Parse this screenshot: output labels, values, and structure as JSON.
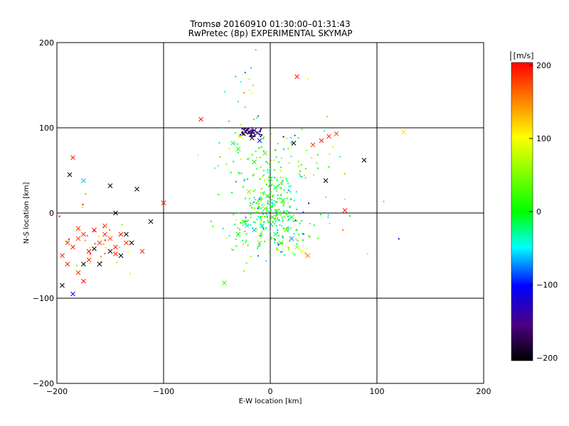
{
  "title_line1": "Tromsø 20160910 01:30:00–01:31:43",
  "title_line2": "RwPretec (8p) EXPERIMENTAL SKYMAP",
  "xlabel": "E-W location [km]",
  "ylabel": "N-S location [km]",
  "colorbar": {
    "unit_label": "[m/s]",
    "ticks": [
      "200",
      "100",
      "0",
      "−100",
      "−200"
    ],
    "range": [
      -200,
      200
    ],
    "colors": [
      "#000000",
      "#4b0082",
      "#0000ff",
      "#00ffff",
      "#00ff00",
      "#ffff00",
      "#ff0000"
    ]
  },
  "chart_data": {
    "type": "scatter",
    "xlim": [
      -200,
      200
    ],
    "ylim": [
      -200,
      200
    ],
    "x_ticks": [
      "−200",
      "−100",
      "0",
      "100",
      "200"
    ],
    "y_ticks": [
      "200",
      "100",
      "0",
      "−100",
      "−200"
    ],
    "grid": true,
    "gridlines_x": [
      -100,
      0,
      100
    ],
    "gridlines_y": [
      100,
      0,
      -100
    ],
    "markers": [
      "x",
      "dot"
    ],
    "points": [
      {
        "x": -190,
        "y": -35,
        "v": 180,
        "m": "x"
      },
      {
        "x": -185,
        "y": -40,
        "v": 190,
        "m": "x"
      },
      {
        "x": -195,
        "y": -50,
        "v": 185,
        "m": "x"
      },
      {
        "x": -180,
        "y": -30,
        "v": 175,
        "m": "x"
      },
      {
        "x": -170,
        "y": -45,
        "v": 195,
        "m": "x"
      },
      {
        "x": -160,
        "y": -35,
        "v": 180,
        "m": "x"
      },
      {
        "x": -150,
        "y": -30,
        "v": 170,
        "m": "x"
      },
      {
        "x": -145,
        "y": -40,
        "v": 190,
        "m": "x"
      },
      {
        "x": -175,
        "y": -25,
        "v": 185,
        "m": "x"
      },
      {
        "x": -165,
        "y": -20,
        "v": 200,
        "m": "x"
      },
      {
        "x": -155,
        "y": -15,
        "v": 175,
        "m": "x"
      },
      {
        "x": -140,
        "y": -25,
        "v": 190,
        "m": "x"
      },
      {
        "x": -135,
        "y": -35,
        "v": 180,
        "m": "x"
      },
      {
        "x": -190,
        "y": -60,
        "v": 190,
        "m": "x"
      },
      {
        "x": -180,
        "y": -70,
        "v": 180,
        "m": "x"
      },
      {
        "x": -175,
        "y": -80,
        "v": 195,
        "m": "x"
      },
      {
        "x": -170,
        "y": -55,
        "v": 185,
        "m": "x"
      },
      {
        "x": -160,
        "y": -60,
        "v": -200,
        "m": "x"
      },
      {
        "x": -150,
        "y": -45,
        "v": -190,
        "m": "x"
      },
      {
        "x": -140,
        "y": -50,
        "v": -200,
        "m": "x"
      },
      {
        "x": -130,
        "y": -35,
        "v": -200,
        "m": "x"
      },
      {
        "x": -135,
        "y": -25,
        "v": -195,
        "m": "x"
      },
      {
        "x": -175,
        "y": -60,
        "v": -200,
        "m": "x"
      },
      {
        "x": -195,
        "y": -85,
        "v": -200,
        "m": "x"
      },
      {
        "x": -185,
        "y": -95,
        "v": -100,
        "m": "x"
      },
      {
        "x": -185,
        "y": 65,
        "v": 190,
        "m": "x"
      },
      {
        "x": -188,
        "y": 45,
        "v": -200,
        "m": "x"
      },
      {
        "x": -150,
        "y": 32,
        "v": -200,
        "m": "x"
      },
      {
        "x": -145,
        "y": 0,
        "v": -200,
        "m": "x"
      },
      {
        "x": -125,
        "y": 28,
        "v": -200,
        "m": "x"
      },
      {
        "x": -112,
        "y": -10,
        "v": -200,
        "m": "x"
      },
      {
        "x": -100,
        "y": 12,
        "v": 190,
        "m": "x"
      },
      {
        "x": -120,
        "y": -45,
        "v": 190,
        "m": "x"
      },
      {
        "x": -65,
        "y": 110,
        "v": 190,
        "m": "x"
      },
      {
        "x": -43,
        "y": -82,
        "v": 20,
        "m": "x"
      },
      {
        "x": -175,
        "y": 38,
        "v": -60,
        "m": "x"
      },
      {
        "x": -180,
        "y": -18,
        "v": 180,
        "m": "x"
      },
      {
        "x": -165,
        "y": -42,
        "v": -200,
        "m": "x"
      },
      {
        "x": -145,
        "y": -48,
        "v": 190,
        "m": "x"
      },
      {
        "x": -155,
        "y": -25,
        "v": 180,
        "m": "x"
      },
      {
        "x": 25,
        "y": 160,
        "v": 190,
        "m": "x"
      },
      {
        "x": 40,
        "y": 80,
        "v": 180,
        "m": "x"
      },
      {
        "x": 48,
        "y": 85,
        "v": 190,
        "m": "x"
      },
      {
        "x": 55,
        "y": 90,
        "v": 185,
        "m": "x"
      },
      {
        "x": 62,
        "y": 93,
        "v": 175,
        "m": "x"
      },
      {
        "x": 52,
        "y": 38,
        "v": -200,
        "m": "x"
      },
      {
        "x": 88,
        "y": 62,
        "v": -200,
        "m": "x"
      },
      {
        "x": 70,
        "y": 3,
        "v": 190,
        "m": "x"
      },
      {
        "x": 125,
        "y": 95,
        "v": 110,
        "m": "x"
      },
      {
        "x": 22,
        "y": 82,
        "v": -200,
        "m": "x"
      },
      {
        "x": -20,
        "y": 95,
        "v": -150,
        "m": "x"
      },
      {
        "x": -18,
        "y": 92,
        "v": -170,
        "m": "x"
      },
      {
        "x": -15,
        "y": 97,
        "v": -140,
        "m": "x"
      },
      {
        "x": -22,
        "y": 98,
        "v": -160,
        "m": "x"
      },
      {
        "x": -25,
        "y": 93,
        "v": -180,
        "m": "x"
      },
      {
        "x": -12,
        "y": 94,
        "v": -130,
        "m": "x"
      },
      {
        "x": -17,
        "y": 88,
        "v": -190,
        "m": "x"
      },
      {
        "x": -10,
        "y": 85,
        "v": -100,
        "m": "x"
      },
      {
        "x": -28,
        "y": 90,
        "v": 80,
        "m": "x"
      },
      {
        "x": -5,
        "y": 70,
        "v": 30,
        "m": "x"
      },
      {
        "x": -30,
        "y": 75,
        "v": 20,
        "m": "x"
      },
      {
        "x": -35,
        "y": 82,
        "v": -20,
        "m": "x"
      },
      {
        "x": -15,
        "y": 60,
        "v": 10,
        "m": "x"
      },
      {
        "x": 0,
        "y": 40,
        "v": 0,
        "m": "x"
      },
      {
        "x": 5,
        "y": 30,
        "v": -20,
        "m": "x"
      },
      {
        "x": -3,
        "y": 20,
        "v": 20,
        "m": "x"
      },
      {
        "x": 3,
        "y": 10,
        "v": -40,
        "m": "x"
      },
      {
        "x": -5,
        "y": 5,
        "v": 40,
        "m": "x"
      },
      {
        "x": 8,
        "y": 0,
        "v": 10,
        "m": "x"
      },
      {
        "x": 2,
        "y": -5,
        "v": 0,
        "m": "x"
      },
      {
        "x": -8,
        "y": -15,
        "v": -30,
        "m": "x"
      },
      {
        "x": -15,
        "y": -20,
        "v": -60,
        "m": "x"
      },
      {
        "x": -22,
        "y": -15,
        "v": -50,
        "m": "x"
      },
      {
        "x": 15,
        "y": -20,
        "v": 30,
        "m": "x"
      },
      {
        "x": 20,
        "y": -30,
        "v": -70,
        "m": "x"
      },
      {
        "x": 10,
        "y": -35,
        "v": 20,
        "m": "x"
      },
      {
        "x": 25,
        "y": -40,
        "v": 60,
        "m": "x"
      },
      {
        "x": 30,
        "y": -45,
        "v": 100,
        "m": "x"
      },
      {
        "x": 35,
        "y": -50,
        "v": 150,
        "m": "x"
      },
      {
        "x": -25,
        "y": -10,
        "v": 10,
        "m": "x"
      },
      {
        "x": -30,
        "y": -25,
        "v": 0,
        "m": "x"
      },
      {
        "x": -20,
        "y": 25,
        "v": 50,
        "m": "x"
      },
      {
        "x": 12,
        "y": 15,
        "v": 5,
        "m": "x"
      },
      {
        "x": 20,
        "y": -5,
        "v": -10,
        "m": "x"
      },
      {
        "x": -10,
        "y": -35,
        "v": 40,
        "m": "x"
      },
      {
        "x": 5,
        "y": -25,
        "v": -25,
        "m": "x"
      }
    ],
    "dot_clusters": [
      {
        "cx": 0,
        "cy": -15,
        "sx": 22,
        "sy": 20,
        "n": 170,
        "vmean": 0,
        "vspread": 90
      },
      {
        "cx": 0,
        "cy": 10,
        "sx": 12,
        "sy": 22,
        "n": 140,
        "vmean": 0,
        "vspread": 60
      },
      {
        "cx": -5,
        "cy": 65,
        "sx": 25,
        "sy": 20,
        "n": 70,
        "vmean": 20,
        "vspread": 80
      },
      {
        "cx": -18,
        "cy": 94,
        "sx": 6,
        "sy": 3,
        "n": 50,
        "vmean": -160,
        "vspread": 40
      },
      {
        "cx": -160,
        "cy": -35,
        "sx": 25,
        "sy": 22,
        "n": 30,
        "vmean": 150,
        "vspread": 120
      },
      {
        "cx": 30,
        "cy": 40,
        "sx": 40,
        "sy": 40,
        "n": 40,
        "vmean": 40,
        "vspread": 120
      },
      {
        "cx": -20,
        "cy": 140,
        "sx": 20,
        "sy": 25,
        "n": 16,
        "vmean": 0,
        "vspread": 120
      }
    ]
  }
}
